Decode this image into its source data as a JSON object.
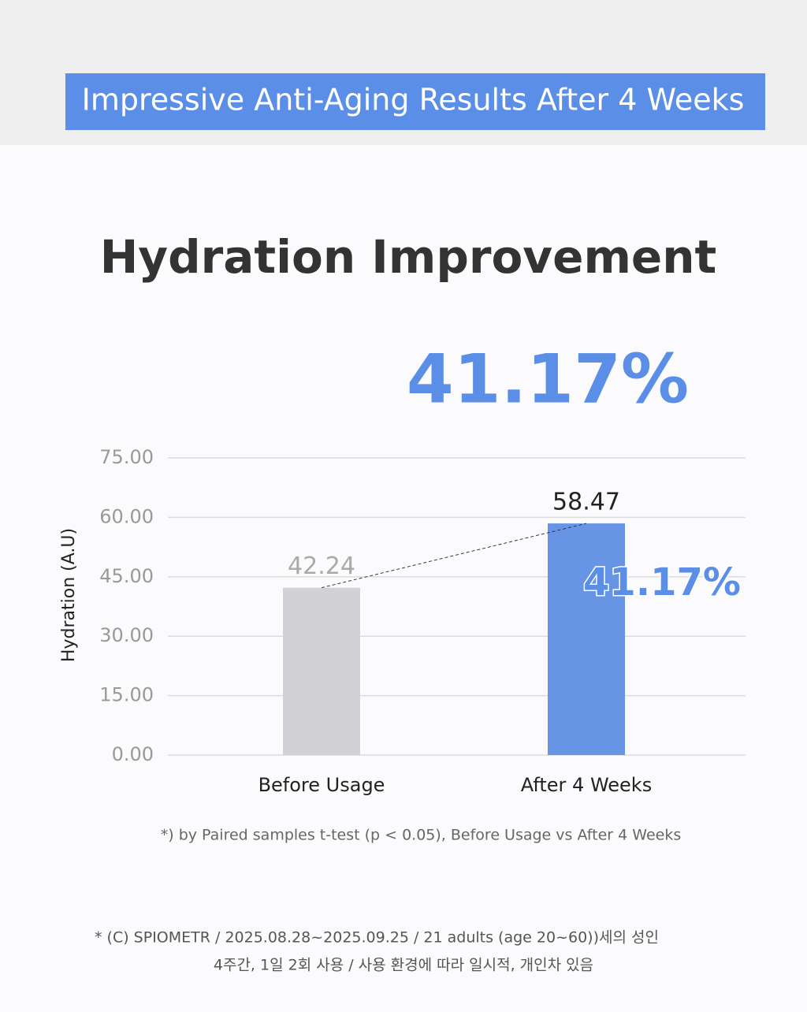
{
  "header": {
    "title": "Impressive Anti-Aging Results After 4 Weeks"
  },
  "chart_data": {
    "type": "bar",
    "title": "Hydration Improvement",
    "highlight": "41.17%",
    "annotation": "41.17%",
    "y_label": "Hydration (A.U)",
    "categories": [
      "Before Usage",
      "After 4 Weeks"
    ],
    "values": [
      42.24,
      58.47
    ],
    "colors": [
      "#d2d2d6",
      "#6894e6"
    ],
    "ylim": [
      0,
      75
    ],
    "yticks": [
      {
        "value": 0,
        "label": "0.00"
      },
      {
        "value": 15,
        "label": "15.00"
      },
      {
        "value": 30,
        "label": "30.00"
      },
      {
        "value": 45,
        "label": "45.00"
      },
      {
        "value": 60,
        "label": "60.00"
      },
      {
        "value": 75,
        "label": "75.00"
      }
    ],
    "grid": true,
    "note": "*) by Paired samples t-test (p < 0.05), Before Usage vs After 4 Weeks"
  },
  "footer": {
    "lines": [
      "* (C) SPIOMETR / 2025.08.28~2025.09.25 / 21 adults (age 20~60))세의 성인",
      "4주간, 1일 2회 사용 / 사용 환경에 따라 일시적, 개인차 있음"
    ]
  }
}
